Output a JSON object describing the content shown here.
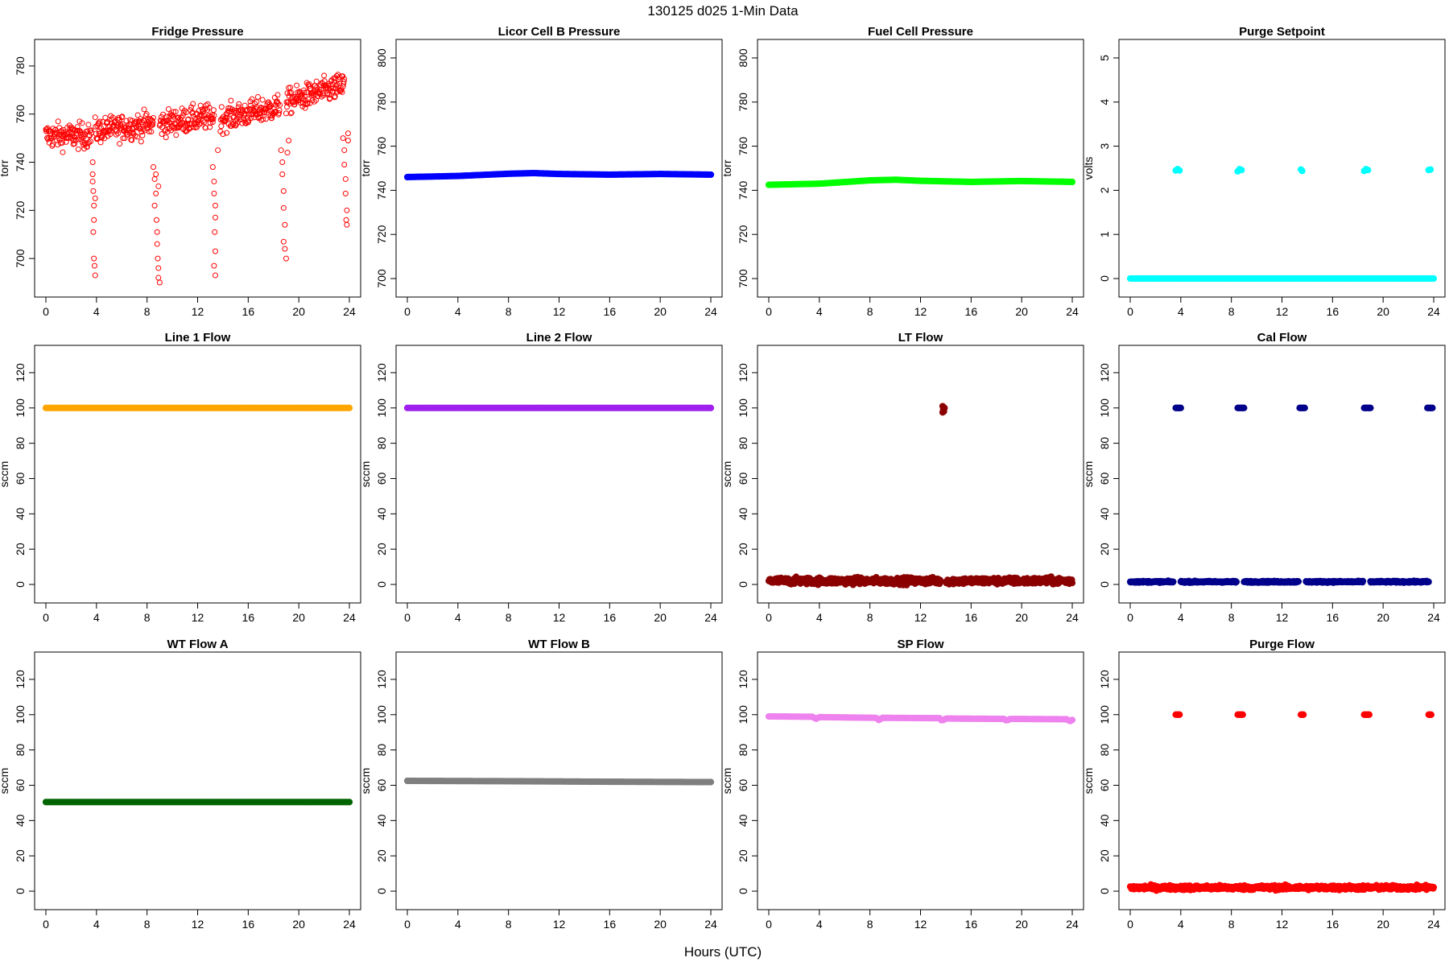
{
  "page_title": "130125   d025   1-Min Data",
  "shared_xlabel": "Hours (UTC)",
  "chart_data": [
    {
      "type": "scatter",
      "title": "Fridge Pressure",
      "ylabel": "torr",
      "xlim": [
        0,
        24
      ],
      "ylim": [
        688,
        787
      ],
      "xticks": [
        0,
        4,
        8,
        12,
        16,
        20,
        24
      ],
      "yticks": [
        700,
        720,
        740,
        760,
        780
      ],
      "color": "#ff0000",
      "marker": "open",
      "series": [
        {
          "segments": [
            {
              "x": [
                0,
                3.6
              ],
              "y": [
                751,
                751
              ],
              "spread": 5
            },
            {
              "x": [
                3.9,
                8.5
              ],
              "y": [
                753,
                756
              ],
              "spread": 5
            },
            {
              "x": [
                9.0,
                13.3
              ],
              "y": [
                756,
                759
              ],
              "spread": 5
            },
            {
              "x": [
                13.8,
                18.5
              ],
              "y": [
                758,
                763
              ],
              "spread": 5
            },
            {
              "x": [
                19.0,
                23.6
              ],
              "y": [
                765,
                772
              ],
              "spread": 5
            }
          ]
        },
        {
          "points": [
            [
              3.7,
              740
            ],
            [
              3.7,
              735
            ],
            [
              3.75,
              728
            ],
            [
              3.8,
              722
            ],
            [
              3.8,
              716
            ],
            [
              3.75,
              711
            ],
            [
              3.8,
              700
            ],
            [
              3.85,
              697
            ],
            [
              3.9,
              693
            ],
            [
              3.7,
              732
            ],
            [
              3.9,
              725
            ],
            [
              8.5,
              738
            ],
            [
              8.6,
              733
            ],
            [
              8.7,
              727
            ],
            [
              8.6,
              722
            ],
            [
              8.75,
              716
            ],
            [
              8.8,
              711
            ],
            [
              8.8,
              706
            ],
            [
              8.85,
              700
            ],
            [
              8.9,
              696
            ],
            [
              8.9,
              692
            ],
            [
              9.0,
              690
            ],
            [
              8.7,
              735
            ],
            [
              8.9,
              730
            ],
            [
              13.2,
              738
            ],
            [
              13.3,
              732
            ],
            [
              13.3,
              727
            ],
            [
              13.4,
              722
            ],
            [
              13.4,
              717
            ],
            [
              13.35,
              711
            ],
            [
              13.4,
              703
            ],
            [
              13.3,
              697
            ],
            [
              13.4,
              693
            ],
            [
              13.6,
              745
            ],
            [
              18.6,
              745
            ],
            [
              18.7,
              740
            ],
            [
              18.7,
              735
            ],
            [
              18.8,
              728
            ],
            [
              18.8,
              721
            ],
            [
              18.9,
              714
            ],
            [
              18.8,
              707
            ],
            [
              18.9,
              704
            ],
            [
              19.0,
              700
            ],
            [
              19.1,
              744
            ],
            [
              19.2,
              749
            ],
            [
              23.5,
              750
            ],
            [
              23.6,
              745
            ],
            [
              23.6,
              739
            ],
            [
              23.7,
              733
            ],
            [
              23.7,
              727
            ],
            [
              23.8,
              720
            ],
            [
              23.75,
              716
            ],
            [
              23.8,
              714
            ],
            [
              23.9,
              749
            ],
            [
              23.9,
              752
            ]
          ]
        }
      ]
    },
    {
      "type": "scatter",
      "title": "Licor Cell B Pressure",
      "ylabel": "torr",
      "xlim": [
        0,
        24
      ],
      "ylim": [
        696,
        804
      ],
      "xticks": [
        0,
        4,
        8,
        12,
        16,
        20,
        24
      ],
      "yticks": [
        700,
        720,
        740,
        760,
        780,
        800
      ],
      "color": "#0000ff",
      "marker": "filled",
      "series": [
        {
          "x": [
            0,
            4,
            8,
            10,
            12,
            16,
            20,
            24
          ],
          "y": [
            746,
            746.5,
            747.5,
            747.8,
            747.4,
            747.1,
            747.4,
            747.1
          ]
        }
      ]
    },
    {
      "type": "scatter",
      "title": "Fuel Cell Pressure",
      "ylabel": "torr",
      "xlim": [
        0,
        24
      ],
      "ylim": [
        696,
        804
      ],
      "xticks": [
        0,
        4,
        8,
        12,
        16,
        20,
        24
      ],
      "yticks": [
        700,
        720,
        740,
        760,
        780,
        800
      ],
      "color": "#00ff00",
      "marker": "filled",
      "series": [
        {
          "x": [
            0,
            4,
            8,
            10,
            12,
            16,
            20,
            24
          ],
          "y": [
            742.5,
            743,
            744.5,
            744.8,
            744.3,
            743.8,
            744.2,
            743.8
          ]
        }
      ]
    },
    {
      "type": "scatter",
      "title": "Purge Setpoint",
      "ylabel": "volts",
      "xlim": [
        0,
        24
      ],
      "ylim": [
        -0.2,
        5.2
      ],
      "xticks": [
        0,
        4,
        8,
        12,
        16,
        20,
        24
      ],
      "yticks": [
        0,
        1,
        2,
        3,
        4,
        5
      ],
      "color": "#00ffff",
      "marker": "filled",
      "series": [
        {
          "x": [
            0,
            24
          ],
          "y": [
            0,
            0
          ]
        },
        {
          "points": [
            [
              3.6,
              2.45
            ],
            [
              3.75,
              2.48
            ],
            [
              3.9,
              2.45
            ],
            [
              8.5,
              2.43
            ],
            [
              8.65,
              2.48
            ],
            [
              8.8,
              2.46
            ],
            [
              13.5,
              2.47
            ],
            [
              13.6,
              2.44
            ],
            [
              18.5,
              2.44
            ],
            [
              18.65,
              2.48
            ],
            [
              18.8,
              2.46
            ],
            [
              23.6,
              2.46
            ],
            [
              23.75,
              2.47
            ]
          ]
        }
      ]
    },
    {
      "type": "scatter",
      "title": "Line 1 Flow",
      "ylabel": "sccm",
      "xlim": [
        0,
        24
      ],
      "ylim": [
        -5,
        130
      ],
      "xticks": [
        0,
        4,
        8,
        12,
        16,
        20,
        24
      ],
      "yticks": [
        0,
        20,
        40,
        60,
        80,
        100,
        120
      ],
      "color": "#ffa500",
      "marker": "filled",
      "series": [
        {
          "x": [
            0,
            24
          ],
          "y": [
            100,
            100
          ]
        }
      ]
    },
    {
      "type": "scatter",
      "title": "Line 2 Flow",
      "ylabel": "sccm",
      "xlim": [
        0,
        24
      ],
      "ylim": [
        -5,
        130
      ],
      "xticks": [
        0,
        4,
        8,
        12,
        16,
        20,
        24
      ],
      "yticks": [
        0,
        20,
        40,
        60,
        80,
        100,
        120
      ],
      "color": "#a020f0",
      "marker": "filled",
      "series": [
        {
          "x": [
            0,
            24
          ],
          "y": [
            100,
            100
          ]
        }
      ]
    },
    {
      "type": "scatter",
      "title": "LT Flow",
      "ylabel": "sccm",
      "xlim": [
        0,
        24
      ],
      "ylim": [
        -5,
        130
      ],
      "xticks": [
        0,
        4,
        8,
        12,
        16,
        20,
        24
      ],
      "yticks": [
        0,
        20,
        40,
        60,
        80,
        100,
        120
      ],
      "color": "#8b0000",
      "marker": "filled",
      "series": [
        {
          "segments": [
            {
              "x": [
                0,
                13.6
              ],
              "y": [
                2,
                2
              ],
              "spread": 1.8
            },
            {
              "x": [
                14.0,
                24
              ],
              "y": [
                2,
                2
              ],
              "spread": 1.8
            }
          ]
        },
        {
          "points": [
            [
              13.75,
              101
            ],
            [
              13.8,
              99
            ],
            [
              13.85,
              98
            ],
            [
              13.75,
              97.5
            ],
            [
              13.9,
              100
            ]
          ]
        }
      ]
    },
    {
      "type": "scatter",
      "title": "Cal Flow",
      "ylabel": "sccm",
      "xlim": [
        0,
        24
      ],
      "ylim": [
        -5,
        130
      ],
      "xticks": [
        0,
        4,
        8,
        12,
        16,
        20,
        24
      ],
      "yticks": [
        0,
        20,
        40,
        60,
        80,
        100,
        120
      ],
      "color": "#00008b",
      "marker": "filled",
      "series": [
        {
          "segments": [
            {
              "x": [
                0,
                3.4
              ],
              "y": [
                1.5,
                1.5
              ],
              "spread": 0.4
            },
            {
              "x": [
                4.0,
                8.4
              ],
              "y": [
                1.5,
                1.5
              ],
              "spread": 0.4
            },
            {
              "x": [
                9.0,
                13.3
              ],
              "y": [
                1.5,
                1.5
              ],
              "spread": 0.4
            },
            {
              "x": [
                13.9,
                18.4
              ],
              "y": [
                1.5,
                1.5
              ],
              "spread": 0.4
            },
            {
              "x": [
                19.0,
                23.6
              ],
              "y": [
                1.5,
                1.5
              ],
              "spread": 0.4
            }
          ]
        },
        {
          "segments": [
            {
              "x": [
                3.6,
                4.0
              ],
              "y": [
                100,
                100
              ],
              "spread": 0
            },
            {
              "x": [
                8.5,
                9.0
              ],
              "y": [
                100,
                100
              ],
              "spread": 0
            },
            {
              "x": [
                13.4,
                13.8
              ],
              "y": [
                100,
                100
              ],
              "spread": 0
            },
            {
              "x": [
                18.5,
                19.0
              ],
              "y": [
                100,
                100
              ],
              "spread": 0
            },
            {
              "x": [
                23.5,
                23.9
              ],
              "y": [
                100,
                100
              ],
              "spread": 0
            }
          ]
        }
      ]
    },
    {
      "type": "scatter",
      "title": "WT Flow A",
      "ylabel": "sccm",
      "xlim": [
        0,
        24
      ],
      "ylim": [
        -5,
        130
      ],
      "xticks": [
        0,
        4,
        8,
        12,
        16,
        20,
        24
      ],
      "yticks": [
        0,
        20,
        40,
        60,
        80,
        100,
        120
      ],
      "color": "#006400",
      "marker": "filled",
      "series": [
        {
          "x": [
            0,
            24
          ],
          "y": [
            50.5,
            50.5
          ]
        }
      ]
    },
    {
      "type": "scatter",
      "title": "WT Flow B",
      "ylabel": "sccm",
      "xlim": [
        0,
        24
      ],
      "ylim": [
        -5,
        130
      ],
      "xticks": [
        0,
        4,
        8,
        12,
        16,
        20,
        24
      ],
      "yticks": [
        0,
        20,
        40,
        60,
        80,
        100,
        120
      ],
      "color": "#7f7f7f",
      "marker": "filled",
      "series": [
        {
          "x": [
            0,
            8,
            16,
            24
          ],
          "y": [
            62.5,
            62.3,
            62,
            61.8
          ]
        }
      ]
    },
    {
      "type": "scatter",
      "title": "SP Flow",
      "ylabel": "sccm",
      "xlim": [
        0,
        24
      ],
      "ylim": [
        -5,
        130
      ],
      "xticks": [
        0,
        4,
        8,
        12,
        16,
        20,
        24
      ],
      "yticks": [
        0,
        20,
        40,
        60,
        80,
        100,
        120
      ],
      "color": "#ee82ee",
      "marker": "filled",
      "series": [
        {
          "x": [
            0,
            3.5,
            3.7,
            4.0,
            8.5,
            8.7,
            9.0,
            13.5,
            13.7,
            14.0,
            18.6,
            18.8,
            19.1,
            23.6,
            23.8,
            24
          ],
          "y": [
            99,
            98.8,
            97.5,
            98.6,
            98.2,
            97,
            98.2,
            98,
            96.5,
            97.8,
            97.6,
            96.6,
            97.6,
            97.4,
            96.2,
            97
          ]
        }
      ]
    },
    {
      "type": "scatter",
      "title": "Purge Flow",
      "ylabel": "sccm",
      "xlim": [
        0,
        24
      ],
      "ylim": [
        -5,
        130
      ],
      "xticks": [
        0,
        4,
        8,
        12,
        16,
        20,
        24
      ],
      "yticks": [
        0,
        20,
        40,
        60,
        80,
        100,
        120
      ],
      "color": "#ff0000",
      "marker": "filled",
      "series": [
        {
          "segments": [
            {
              "x": [
                0,
                24
              ],
              "y": [
                2,
                2
              ],
              "spread": 1.2
            }
          ]
        },
        {
          "segments": [
            {
              "x": [
                3.6,
                3.9
              ],
              "y": [
                100,
                100
              ],
              "spread": 0
            },
            {
              "x": [
                8.5,
                8.9
              ],
              "y": [
                100,
                100
              ],
              "spread": 0
            },
            {
              "x": [
                13.5,
                13.7
              ],
              "y": [
                100,
                100
              ],
              "spread": 0
            },
            {
              "x": [
                18.5,
                18.9
              ],
              "y": [
                100,
                100
              ],
              "spread": 0
            },
            {
              "x": [
                23.6,
                23.8
              ],
              "y": [
                100,
                100
              ],
              "spread": 0
            }
          ]
        }
      ]
    }
  ]
}
